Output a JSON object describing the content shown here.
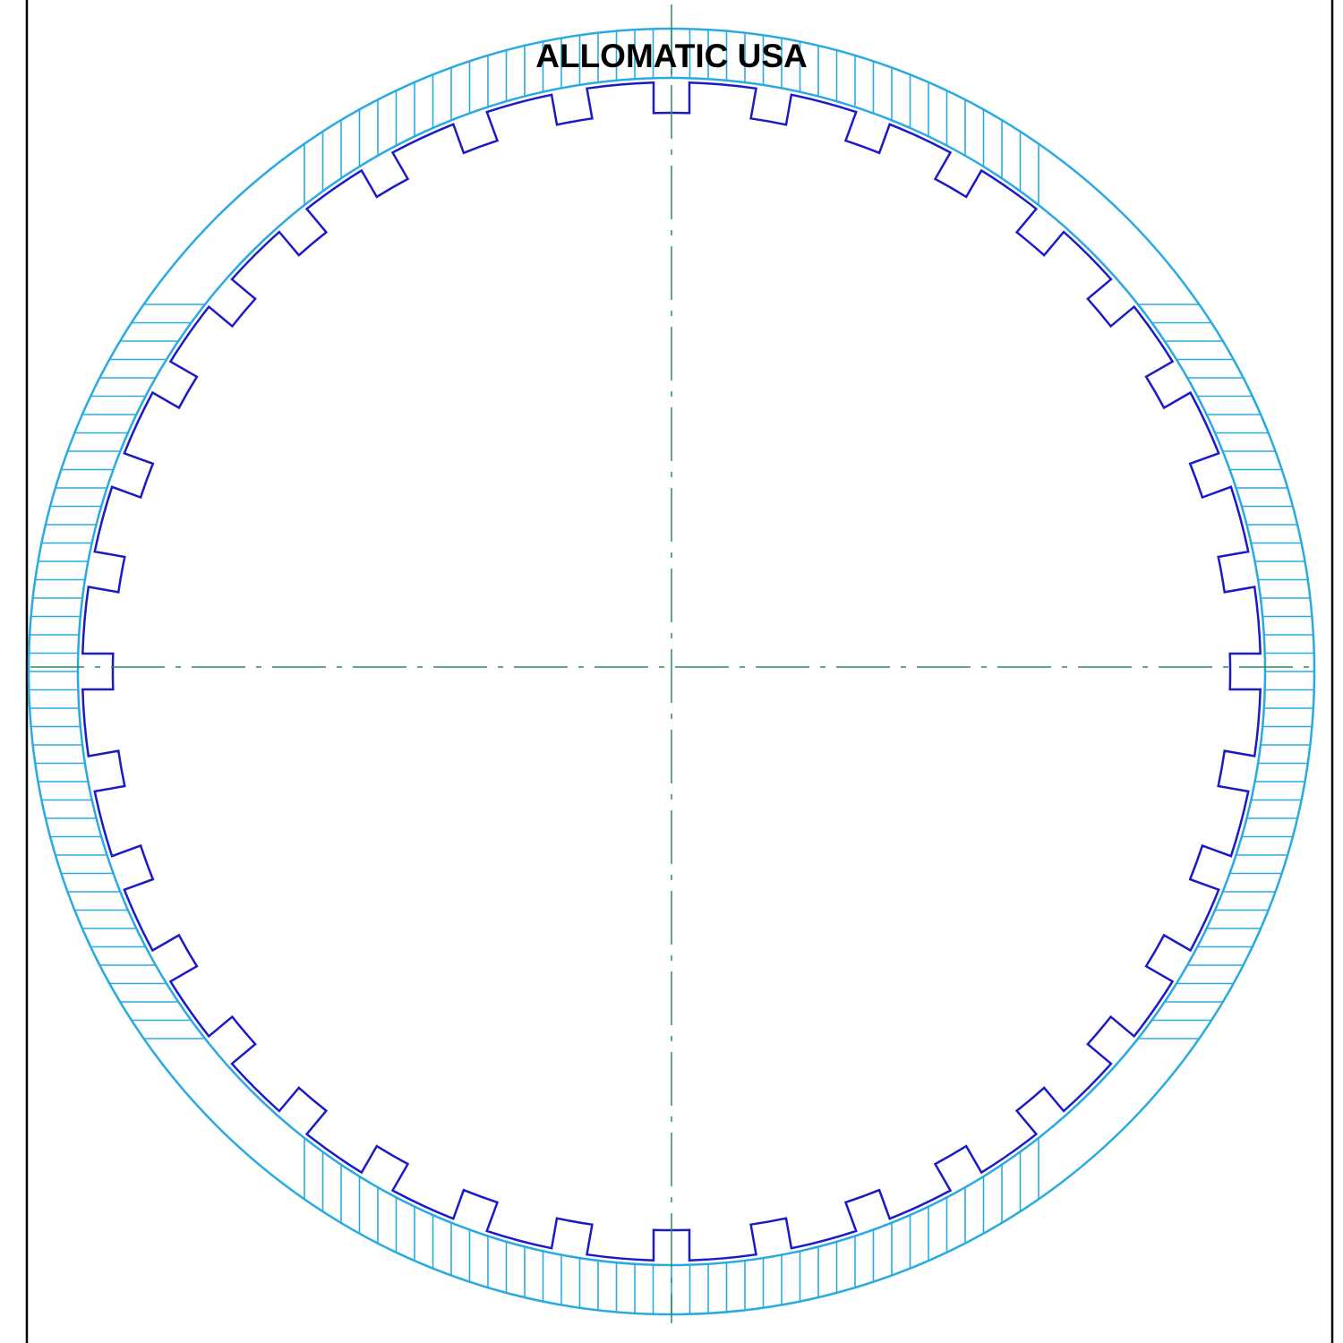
{
  "brand": {
    "text": "ALLOMATIC USA"
  },
  "drawing": {
    "tooth_count": 36,
    "colors": {
      "frame": "#000000",
      "friction_ring": "#29ABE2",
      "steel_profile": "#1A1AC8",
      "centerline": "#2E8B57",
      "background": "#FFFFFF"
    }
  }
}
